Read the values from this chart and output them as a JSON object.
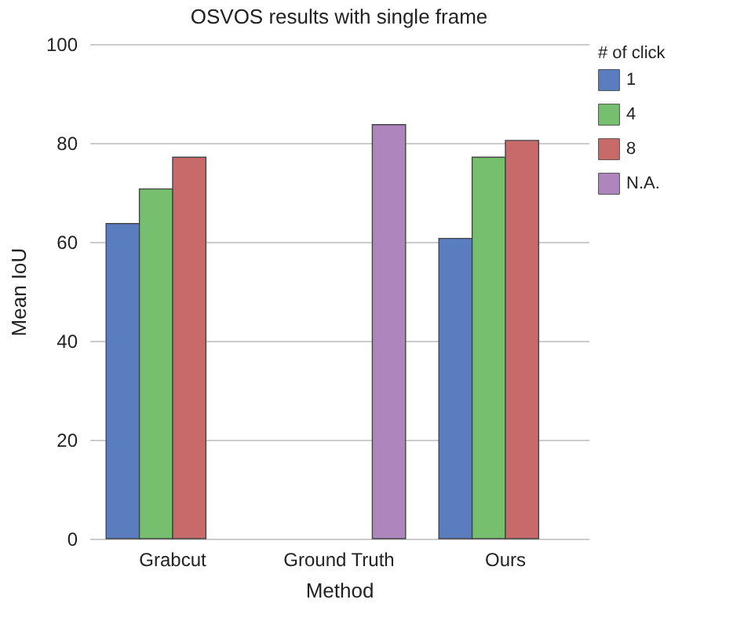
{
  "chart_data": {
    "type": "bar",
    "title": "OSVOS results with single frame",
    "xlabel": "Method",
    "ylabel": "Mean IoU",
    "legend_title": "# of click",
    "categories": [
      "Grabcut",
      "Ground Truth",
      "Ours"
    ],
    "series": [
      {
        "name": "1",
        "color": "#5a7dc0",
        "values": [
          63.7,
          null,
          60.7
        ]
      },
      {
        "name": "4",
        "color": "#75bf6f",
        "values": [
          70.7,
          null,
          77.1
        ]
      },
      {
        "name": "8",
        "color": "#c86a6a",
        "values": [
          77.1,
          null,
          80.5
        ]
      },
      {
        "name": "N.A.",
        "color": "#ae85bc",
        "values": [
          null,
          83.7,
          null
        ]
      }
    ],
    "ylim": [
      0,
      100
    ],
    "yticks": [
      0,
      20,
      40,
      60,
      80,
      100
    ],
    "grid": "y",
    "legend": "right"
  }
}
